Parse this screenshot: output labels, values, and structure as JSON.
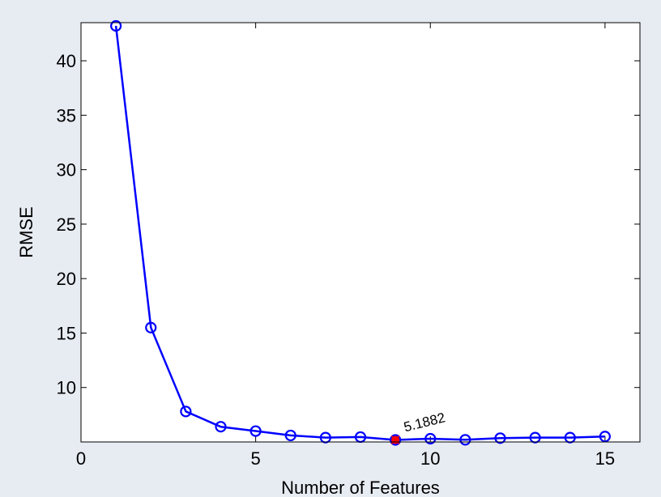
{
  "chart_data": {
    "type": "line",
    "title": "",
    "xlabel": "Number of Features",
    "ylabel": "RMSE",
    "xlim": [
      0,
      16
    ],
    "ylim": [
      5,
      43.5
    ],
    "xticks": [
      0,
      5,
      10,
      15
    ],
    "yticks": [
      10,
      15,
      20,
      25,
      30,
      35,
      40
    ],
    "x_tick_labels": [
      "0",
      "5",
      "10",
      "15"
    ],
    "y_tick_labels": [
      "10",
      "15",
      "20",
      "25",
      "30",
      "35",
      "40"
    ],
    "grid": false,
    "series": [
      {
        "x": [
          1,
          2,
          3,
          4,
          5,
          6,
          7,
          8,
          9,
          10,
          11,
          12,
          13,
          14,
          15
        ],
        "values": [
          43.2,
          15.5,
          7.8,
          6.4,
          6.0,
          5.6,
          5.4,
          5.45,
          5.1882,
          5.3,
          5.2,
          5.35,
          5.4,
          5.4,
          5.5
        ],
        "color": "#0000ff",
        "marker": "circle"
      }
    ],
    "highlight": {
      "x": 9,
      "y": 5.1882,
      "color": "#ff0000",
      "label": "5.1882"
    }
  }
}
